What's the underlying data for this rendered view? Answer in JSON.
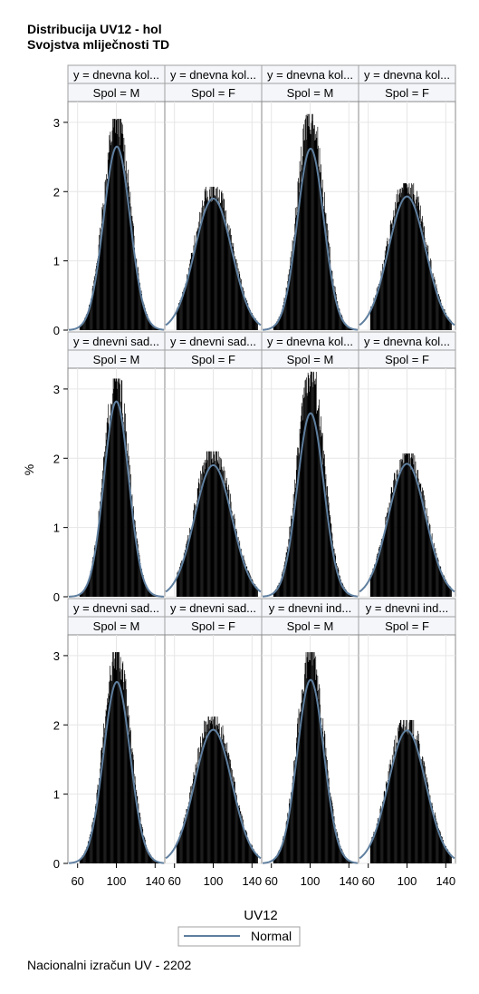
{
  "titles": [
    "Distribucija UV12 - hol",
    "Svojstva mliječnosti TD"
  ],
  "footnote": "Nacionalni izračun UV - 2202",
  "chart_data": {
    "type": "histogram-panel",
    "xlabel": "UV12",
    "ylabel": "%",
    "xlim": [
      50,
      150
    ],
    "ylim": [
      0,
      3.3
    ],
    "xticks": [
      60,
      100,
      140
    ],
    "yticks": [
      0,
      1,
      2,
      3
    ],
    "grid": true,
    "legend": {
      "position": "bottom-center",
      "entries": [
        {
          "name": "Normal",
          "color": "#5f7f9f"
        }
      ]
    },
    "bar_color": "#000000",
    "curve_color": "#5f7f9f",
    "panels": [
      {
        "row": 0,
        "col": 0,
        "header1": "y = dnevna kol...",
        "header2": "Spol = M",
        "peak_hist": 3.05,
        "normal_peak": 2.65,
        "mean": 100.5,
        "sd": 15
      },
      {
        "row": 0,
        "col": 1,
        "header1": "y = dnevna kol...",
        "header2": "Spol = F",
        "peak_hist": 2.07,
        "normal_peak": 1.9,
        "mean": 100,
        "sd": 21
      },
      {
        "row": 0,
        "col": 2,
        "header1": "y = dnevna kol...",
        "header2": "Spol = M",
        "peak_hist": 3.12,
        "normal_peak": 2.62,
        "mean": 100.5,
        "sd": 15
      },
      {
        "row": 0,
        "col": 3,
        "header1": "y = dnevna kol...",
        "header2": "Spol = F",
        "peak_hist": 2.12,
        "normal_peak": 1.93,
        "mean": 100,
        "sd": 21
      },
      {
        "row": 1,
        "col": 0,
        "header1": "y = dnevni sad...",
        "header2": "Spol = M",
        "peak_hist": 3.15,
        "normal_peak": 2.82,
        "mean": 100,
        "sd": 14
      },
      {
        "row": 1,
        "col": 1,
        "header1": "y = dnevni sad...",
        "header2": "Spol = F",
        "peak_hist": 2.1,
        "normal_peak": 1.9,
        "mean": 100,
        "sd": 21
      },
      {
        "row": 1,
        "col": 2,
        "header1": "y = dnevna kol...",
        "header2": "Spol = M",
        "peak_hist": 3.25,
        "normal_peak": 2.65,
        "mean": 100.5,
        "sd": 15
      },
      {
        "row": 1,
        "col": 3,
        "header1": "y = dnevna kol...",
        "header2": "Spol = F",
        "peak_hist": 2.07,
        "normal_peak": 1.92,
        "mean": 100,
        "sd": 21
      },
      {
        "row": 2,
        "col": 0,
        "header1": "y = dnevni sad...",
        "header2": "Spol = M",
        "peak_hist": 3.05,
        "normal_peak": 2.62,
        "mean": 100.5,
        "sd": 15
      },
      {
        "row": 2,
        "col": 1,
        "header1": "y = dnevni sad...",
        "header2": "Spol = F",
        "peak_hist": 2.12,
        "normal_peak": 1.93,
        "mean": 100,
        "sd": 21
      },
      {
        "row": 2,
        "col": 2,
        "header1": "y = dnevni ind...",
        "header2": "Spol = M",
        "peak_hist": 3.05,
        "normal_peak": 2.65,
        "mean": 100.5,
        "sd": 15
      },
      {
        "row": 2,
        "col": 3,
        "header1": "y = dnevni ind...",
        "header2": "Spol = F",
        "peak_hist": 2.07,
        "normal_peak": 1.92,
        "mean": 100,
        "sd": 21
      }
    ]
  }
}
